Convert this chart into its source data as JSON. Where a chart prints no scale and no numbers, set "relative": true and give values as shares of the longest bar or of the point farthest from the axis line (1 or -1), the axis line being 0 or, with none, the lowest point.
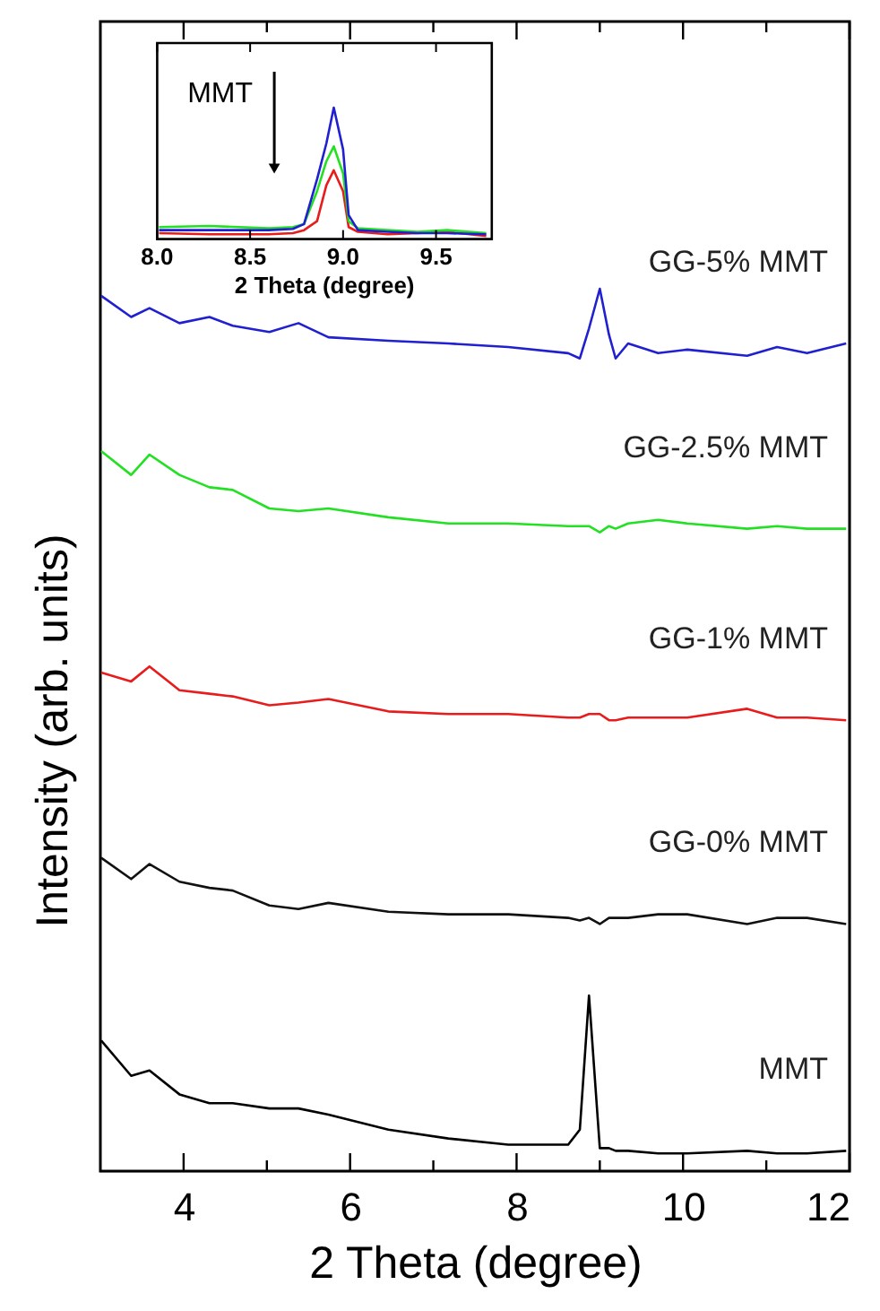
{
  "chart_data": [
    {
      "type": "line",
      "relative": true,
      "xlabel": "2 Theta (degree)",
      "ylabel": "Intensity (arb. units)",
      "xlim": [
        3,
        12
      ],
      "xticks": [
        4,
        {
          "value": 5,
          "label": null
        },
        6,
        {
          "value": 7,
          "label": null
        },
        8,
        {
          "value": 9,
          "label": null
        },
        10,
        {
          "value": 11,
          "label": null
        },
        12
      ],
      "tick_labels": "x",
      "line_style": "solid",
      "marker": "none",
      "x": [
        3.01,
        3.37,
        3.59,
        3.95,
        4.31,
        4.59,
        5.03,
        5.38,
        5.74,
        6.46,
        7.18,
        7.9,
        8.62,
        8.76,
        8.87,
        9.0,
        9.11,
        9.19,
        9.34,
        9.7,
        10.05,
        10.77,
        11.13,
        11.49,
        11.96
      ],
      "series": [
        {
          "name": "GG-5% MMT",
          "color": "#2020d0",
          "values": [
            0.992,
            0.968,
            0.978,
            0.961,
            0.968,
            0.958,
            0.951,
            0.961,
            0.945,
            0.941,
            0.938,
            0.934,
            0.927,
            0.921,
            0.955,
            1.0,
            0.948,
            0.921,
            0.938,
            0.927,
            0.931,
            0.924,
            0.934,
            0.927,
            0.938
          ]
        },
        {
          "name": "GG-2.5% MMT",
          "color": "#22e022",
          "values": [
            0.816,
            0.789,
            0.812,
            0.789,
            0.775,
            0.772,
            0.751,
            0.748,
            0.751,
            0.741,
            0.734,
            0.734,
            0.731,
            0.731,
            0.731,
            0.724,
            0.731,
            0.728,
            0.734,
            0.738,
            0.734,
            0.728,
            0.731,
            0.728,
            0.728
          ]
        },
        {
          "name": "GG-1% MMT",
          "color": "#e81c1c",
          "values": [
            0.565,
            0.555,
            0.572,
            0.545,
            0.541,
            0.538,
            0.528,
            0.531,
            0.535,
            0.521,
            0.518,
            0.518,
            0.514,
            0.514,
            0.518,
            0.518,
            0.511,
            0.511,
            0.514,
            0.514,
            0.514,
            0.524,
            0.514,
            0.514,
            0.511
          ]
        },
        {
          "name": "GG-0% MMT",
          "color": "#111111",
          "values": [
            0.355,
            0.331,
            0.348,
            0.328,
            0.321,
            0.318,
            0.301,
            0.297,
            0.304,
            0.294,
            0.291,
            0.291,
            0.287,
            0.284,
            0.287,
            0.28,
            0.287,
            0.287,
            0.287,
            0.291,
            0.291,
            0.28,
            0.287,
            0.287,
            0.28
          ]
        },
        {
          "name": "MMT",
          "color": "#000000",
          "values": [
            0.148,
            0.108,
            0.114,
            0.087,
            0.077,
            0.077,
            0.071,
            0.071,
            0.064,
            0.047,
            0.037,
            0.03,
            0.03,
            0.047,
            0.199,
            0.026,
            0.026,
            0.023,
            0.023,
            0.02,
            0.02,
            0.023,
            0.02,
            0.02,
            0.023
          ]
        }
      ]
    },
    {
      "type": "line",
      "relative": true,
      "xlabel": "2 Theta (degree)",
      "xlim": [
        8.0,
        9.8
      ],
      "xticks": [
        {
          "value": 8,
          "label": "8.0"
        },
        {
          "value": 8.5,
          "label": "8.5"
        },
        {
          "value": 9,
          "label": "9.0"
        },
        {
          "value": 9.5,
          "label": "9.5"
        }
      ],
      "tick_labels": "x",
      "line_style": "solid",
      "marker": "none",
      "annotations": [
        "MMT"
      ],
      "x": [
        8.01,
        8.28,
        8.6,
        8.73,
        8.79,
        8.86,
        8.91,
        8.95,
        9.0,
        9.03,
        9.08,
        9.24,
        9.4,
        9.56,
        9.77
      ],
      "series": [
        {
          "color": "#e81c1c",
          "values": [
            0.045,
            0.036,
            0.036,
            0.045,
            0.068,
            0.136,
            0.409,
            0.523,
            0.364,
            0.091,
            0.055,
            0.036,
            0.045,
            0.055,
            0.023
          ]
        },
        {
          "color": "#22e022",
          "values": [
            0.091,
            0.1,
            0.082,
            0.091,
            0.114,
            0.364,
            0.591,
            0.705,
            0.5,
            0.136,
            0.082,
            0.068,
            0.055,
            0.068,
            0.045
          ]
        },
        {
          "color": "#2020d0",
          "values": [
            0.068,
            0.068,
            0.068,
            0.077,
            0.114,
            0.455,
            0.727,
            1.0,
            0.682,
            0.182,
            0.068,
            0.055,
            0.045,
            0.045,
            0.036
          ]
        }
      ]
    }
  ]
}
